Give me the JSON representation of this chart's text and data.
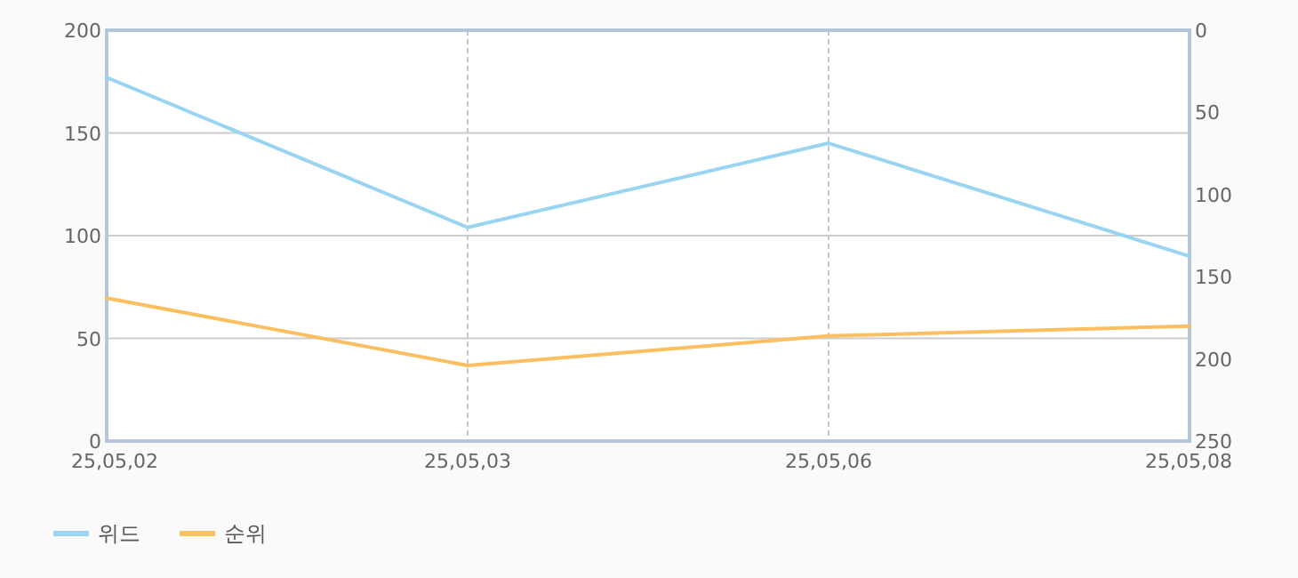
{
  "chart_data": {
    "type": "line",
    "categories": [
      "25,05,02",
      "25,05,03",
      "25,05,06",
      "25,05,08"
    ],
    "series": [
      {
        "name": "위드",
        "color": "#99d4f2",
        "values": [
          177,
          104,
          145,
          90
        ]
      },
      {
        "name": "순위",
        "color": "#fbbf60",
        "values": [
          163,
          204,
          186,
          180
        ],
        "axis": "y2"
      }
    ],
    "ylim": [
      0,
      200
    ],
    "yticks": [
      0,
      50,
      100,
      150,
      200
    ],
    "y2lim": [
      250,
      0
    ],
    "y2ticks": [
      0,
      50,
      100,
      150,
      200,
      250
    ],
    "grid": true,
    "legend": "bottom",
    "marker": "none",
    "line_style": "solid"
  }
}
